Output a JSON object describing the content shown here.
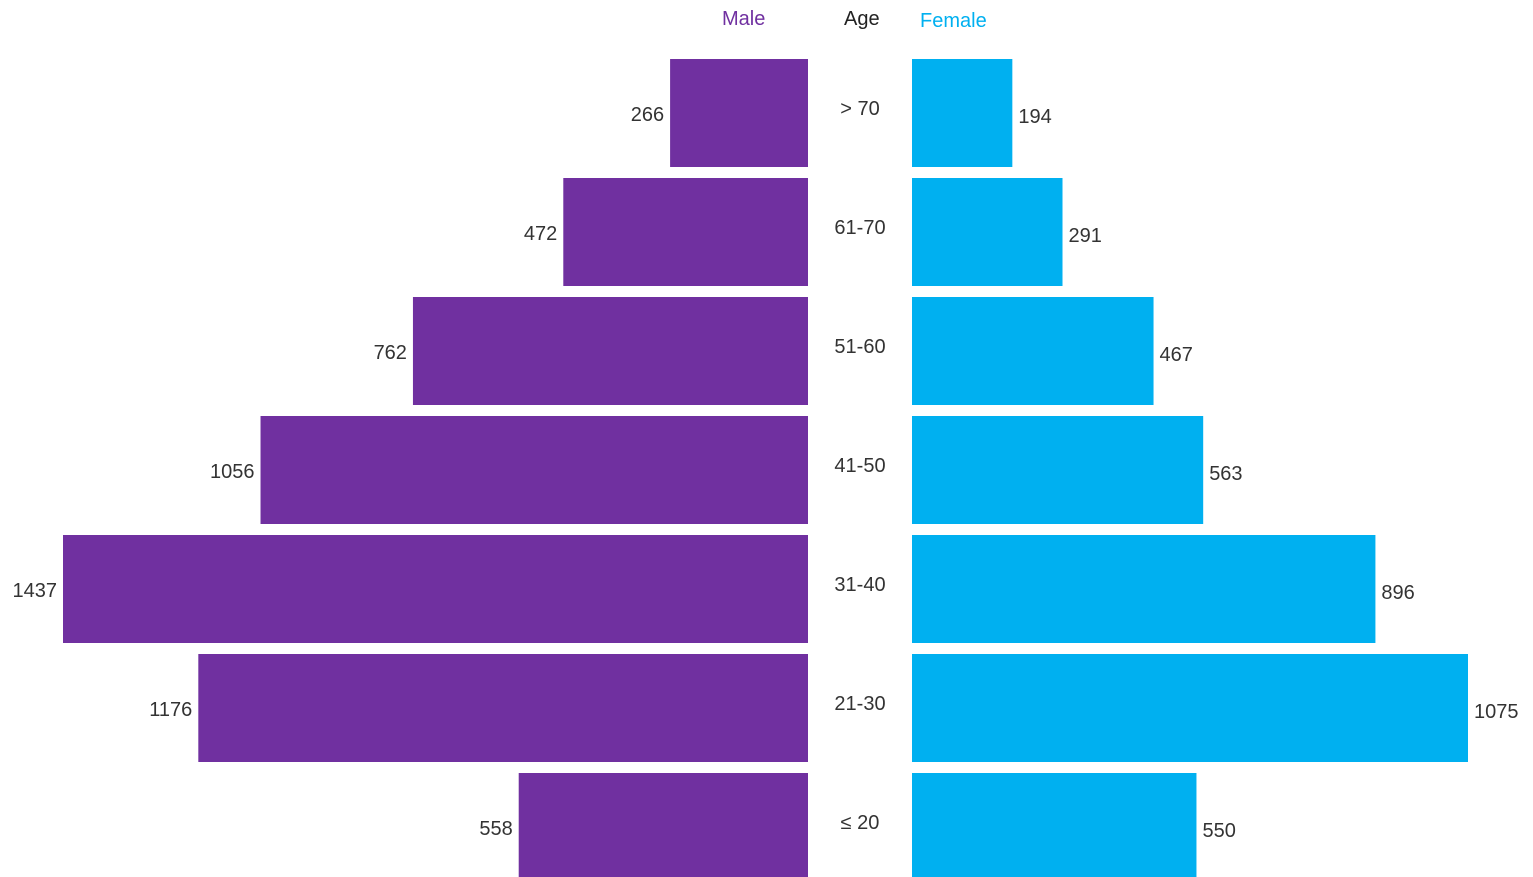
{
  "chart_data": {
    "type": "bar",
    "orientation": "horizontal-mirrored",
    "headers": {
      "male": "Male",
      "age": "Age",
      "female": "Female"
    },
    "categories": [
      "> 70",
      "61-70",
      "51-60",
      "41-50",
      "31-40",
      "21-30",
      "≤ 20"
    ],
    "series": [
      {
        "name": "Male",
        "values": [
          266,
          472,
          762,
          1056,
          1437,
          1176,
          558
        ],
        "color": "#7030A0"
      },
      {
        "name": "Female",
        "values": [
          194,
          291,
          467,
          563,
          896,
          1075,
          550
        ],
        "color": "#00B0F0"
      }
    ],
    "label_color": "#333333",
    "grid": false,
    "legend": "top"
  }
}
